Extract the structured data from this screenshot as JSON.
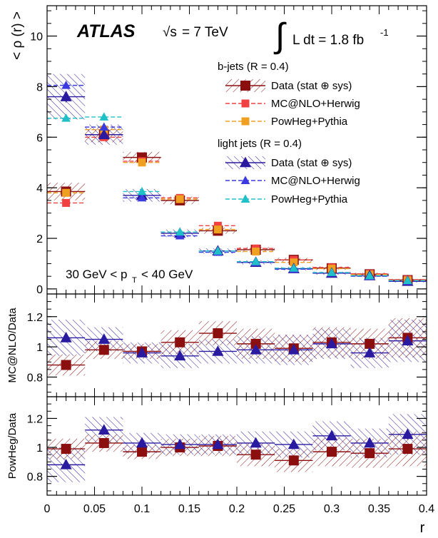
{
  "texts": {
    "experiment": "ATLAS",
    "energy_root": "√s",
    "energy_value": "= 7 TeV",
    "lumi_integral": "∫",
    "lumi_text": "L dt = 1.8 fb",
    "lumi_exp": "-1",
    "kin_prefix": "30 GeV < p",
    "kin_sub": "T",
    "kin_suffix": "< 40 GeV"
  },
  "colors": {
    "bjet_data": "#8b0f0f",
    "bjet_mcnlo": "#f04040",
    "bjet_powheg": "#f0a020",
    "light_data": "#2a1aa0",
    "light_mcnlo": "#3a3ae0",
    "light_powheg": "#20c0c8"
  },
  "legend": {
    "placement": "top-right",
    "b_header": "b-jets (R = 0.4)",
    "light_header": "light jets (R = 0.4)",
    "entries": [
      {
        "group": "b",
        "label": "Data (stat ⊕ sys)",
        "style": "data",
        "color_key": "bjet_data",
        "marker": "square"
      },
      {
        "group": "b",
        "label": "MC@NLO+Herwig",
        "style": "mc",
        "color_key": "bjet_mcnlo",
        "marker": "square"
      },
      {
        "group": "b",
        "label": "PowHeg+Pythia",
        "style": "mc",
        "color_key": "bjet_powheg",
        "marker": "square"
      },
      {
        "group": "light",
        "label": "Data (stat ⊕ sys)",
        "style": "data",
        "color_key": "light_data",
        "marker": "triangle"
      },
      {
        "group": "light",
        "label": "MC@NLO+Herwig",
        "style": "mc",
        "color_key": "light_mcnlo",
        "marker": "triangle"
      },
      {
        "group": "light",
        "label": "PowHeg+Pythia",
        "style": "mc",
        "color_key": "light_powheg",
        "marker": "triangle"
      }
    ]
  },
  "chart_data": [
    {
      "type": "scatter",
      "panel": "main",
      "xlabel": "r",
      "ylabel": "< ρ (r) >",
      "xlim": [
        0,
        0.4
      ],
      "ylim": [
        -0.2,
        11.2
      ],
      "yticks": [
        0,
        2,
        4,
        6,
        8,
        10
      ],
      "bin_edges": [
        0,
        0.04,
        0.08,
        0.12,
        0.16,
        0.2,
        0.24,
        0.28,
        0.32,
        0.36,
        0.4
      ],
      "series": [
        {
          "name": "b-jets Data (stat ⊕ sys)",
          "color_key": "bjet_data",
          "marker": "square",
          "kind": "data",
          "hatch": "b",
          "x": [
            0.02,
            0.06,
            0.1,
            0.14,
            0.18,
            0.22,
            0.26,
            0.3,
            0.34,
            0.38
          ],
          "y": [
            3.85,
            6.1,
            5.2,
            3.5,
            2.3,
            1.55,
            1.15,
            0.82,
            0.58,
            0.35
          ],
          "err": [
            0.35,
            0.3,
            0.22,
            0.15,
            0.12,
            0.1,
            0.08,
            0.07,
            0.06,
            0.05
          ]
        },
        {
          "name": "b-jets MC@NLO+Herwig",
          "color_key": "bjet_mcnlo",
          "marker": "square",
          "kind": "mc",
          "x": [
            0.02,
            0.06,
            0.1,
            0.14,
            0.18,
            0.22,
            0.26,
            0.3,
            0.34,
            0.38
          ],
          "y": [
            3.4,
            6.0,
            5.05,
            3.6,
            2.5,
            1.6,
            1.15,
            0.85,
            0.6,
            0.37
          ]
        },
        {
          "name": "b-jets PowHeg+Pythia",
          "color_key": "bjet_powheg",
          "marker": "square",
          "kind": "mc",
          "x": [
            0.02,
            0.06,
            0.1,
            0.14,
            0.18,
            0.22,
            0.26,
            0.3,
            0.34,
            0.38
          ],
          "y": [
            3.8,
            6.3,
            5.0,
            3.55,
            2.35,
            1.48,
            1.05,
            0.8,
            0.57,
            0.34
          ]
        },
        {
          "name": "light jets Data (stat ⊕ sys)",
          "color_key": "light_data",
          "marker": "triangle",
          "kind": "data",
          "hatch": "light",
          "x": [
            0.02,
            0.06,
            0.1,
            0.14,
            0.18,
            0.22,
            0.26,
            0.3,
            0.34,
            0.38
          ],
          "y": [
            7.6,
            6.1,
            3.7,
            2.2,
            1.5,
            1.05,
            0.8,
            0.62,
            0.52,
            0.3
          ],
          "err": [
            0.9,
            0.4,
            0.25,
            0.15,
            0.1,
            0.08,
            0.07,
            0.06,
            0.05,
            0.05
          ]
        },
        {
          "name": "light jets MC@NLO+Herwig",
          "color_key": "light_mcnlo",
          "marker": "triangle",
          "kind": "mc",
          "x": [
            0.02,
            0.06,
            0.1,
            0.14,
            0.18,
            0.22,
            0.26,
            0.3,
            0.34,
            0.38
          ],
          "y": [
            8.05,
            6.4,
            3.6,
            2.1,
            1.45,
            1.05,
            0.78,
            0.63,
            0.5,
            0.31
          ]
        },
        {
          "name": "light jets PowHeg+Pythia",
          "color_key": "light_powheg",
          "marker": "triangle",
          "kind": "mc",
          "x": [
            0.02,
            0.06,
            0.1,
            0.14,
            0.18,
            0.22,
            0.26,
            0.3,
            0.34,
            0.38
          ],
          "y": [
            6.75,
            6.8,
            3.85,
            2.25,
            1.5,
            1.08,
            0.82,
            0.65,
            0.52,
            0.33
          ]
        }
      ]
    },
    {
      "type": "scatter",
      "panel": "ratio1",
      "xlabel": "r",
      "ylabel": "MC@NLO/Data",
      "xlim": [
        0,
        0.4
      ],
      "ylim": [
        0.67,
        1.35
      ],
      "yticks": [
        0.8,
        1,
        1.2
      ],
      "bin_edges": [
        0,
        0.04,
        0.08,
        0.12,
        0.16,
        0.2,
        0.24,
        0.28,
        0.32,
        0.36,
        0.4
      ],
      "series": [
        {
          "name": "b-jets ratio",
          "color_key": "bjet_data",
          "marker": "square",
          "kind": "ratio",
          "hatch": "b",
          "x": [
            0.02,
            0.06,
            0.1,
            0.14,
            0.18,
            0.22,
            0.26,
            0.3,
            0.34,
            0.38
          ],
          "y": [
            0.88,
            0.98,
            0.97,
            1.03,
            1.09,
            1.02,
            0.99,
            1.03,
            1.02,
            1.06
          ],
          "err": [
            0.07,
            0.06,
            0.05,
            0.08,
            0.08,
            0.1,
            0.09,
            0.1,
            0.1,
            0.13
          ]
        },
        {
          "name": "light jets ratio",
          "color_key": "light_data",
          "marker": "triangle",
          "kind": "ratio",
          "hatch": "light",
          "x": [
            0.02,
            0.06,
            0.1,
            0.14,
            0.18,
            0.22,
            0.26,
            0.3,
            0.34,
            0.38
          ],
          "y": [
            1.06,
            1.05,
            0.96,
            0.94,
            0.97,
            0.98,
            0.98,
            1.02,
            0.96,
            1.04
          ],
          "err": [
            0.12,
            0.08,
            0.07,
            0.08,
            0.08,
            0.09,
            0.1,
            0.1,
            0.1,
            0.14
          ]
        }
      ]
    },
    {
      "type": "scatter",
      "panel": "ratio2",
      "xlabel": "r",
      "ylabel": "PowHeg/Data",
      "xlim": [
        0,
        0.4
      ],
      "xticks": [
        0,
        0.05,
        0.1,
        0.15,
        0.2,
        0.25,
        0.3,
        0.35,
        0.4
      ],
      "xticklabels": [
        "0",
        "0.05",
        "0.1",
        "0.15",
        "0.2",
        "0.25",
        "0.3",
        "0.35",
        "0.4"
      ],
      "ylim": [
        0.67,
        1.35
      ],
      "yticks": [
        0.8,
        1,
        1.2
      ],
      "bin_edges": [
        0,
        0.04,
        0.08,
        0.12,
        0.16,
        0.2,
        0.24,
        0.28,
        0.32,
        0.36,
        0.4
      ],
      "series": [
        {
          "name": "b-jets ratio",
          "color_key": "bjet_data",
          "marker": "square",
          "kind": "ratio",
          "hatch": "b",
          "x": [
            0.02,
            0.06,
            0.1,
            0.14,
            0.18,
            0.22,
            0.26,
            0.3,
            0.34,
            0.38
          ],
          "y": [
            0.99,
            1.03,
            0.97,
            1.0,
            1.01,
            0.95,
            0.91,
            0.97,
            0.96,
            0.99
          ],
          "err": [
            0.07,
            0.06,
            0.05,
            0.06,
            0.07,
            0.08,
            0.08,
            0.1,
            0.1,
            0.12
          ]
        },
        {
          "name": "light jets ratio",
          "color_key": "light_data",
          "marker": "triangle",
          "kind": "ratio",
          "hatch": "light",
          "x": [
            0.02,
            0.06,
            0.1,
            0.14,
            0.18,
            0.22,
            0.26,
            0.3,
            0.34,
            0.38
          ],
          "y": [
            0.88,
            1.12,
            1.03,
            1.02,
            1.02,
            1.03,
            1.02,
            1.08,
            1.03,
            1.09
          ],
          "err": [
            0.12,
            0.09,
            0.07,
            0.07,
            0.07,
            0.08,
            0.09,
            0.1,
            0.1,
            0.14
          ]
        }
      ]
    }
  ]
}
